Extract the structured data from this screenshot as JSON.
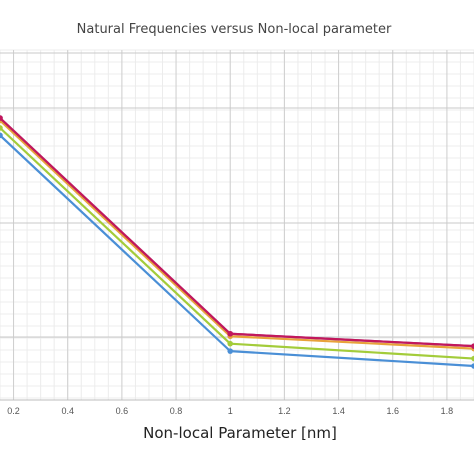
{
  "chart_data": {
    "type": "line",
    "title": "Natural Frequencies versus Non-local parameter",
    "xlabel": "Non-local Parameter [nm]",
    "ylabel": "",
    "x_ticks": [
      "0.2",
      "0.4",
      "0.6",
      "0.8",
      "1",
      "1.2",
      "1.4",
      "1.6",
      "1.8"
    ],
    "xlim": [
      0.15,
      1.9
    ],
    "ylim": [
      0,
      1
    ],
    "grid": true,
    "legend": "none",
    "x": [
      0,
      1,
      2
    ],
    "series": [
      {
        "color": "#4a8fd6",
        "values": [
          0.93,
          0.06,
          0.0
        ]
      },
      {
        "color": "#a3cc3a",
        "values": [
          0.96,
          0.09,
          0.03
        ]
      },
      {
        "color": "#e8a23a",
        "values": [
          0.99,
          0.12,
          0.07
        ]
      },
      {
        "color": "#8e44ad",
        "values": [
          1.0,
          0.13,
          0.08
        ]
      },
      {
        "color": "#c2185b",
        "values": [
          1.0,
          0.13,
          0.08
        ]
      }
    ]
  }
}
